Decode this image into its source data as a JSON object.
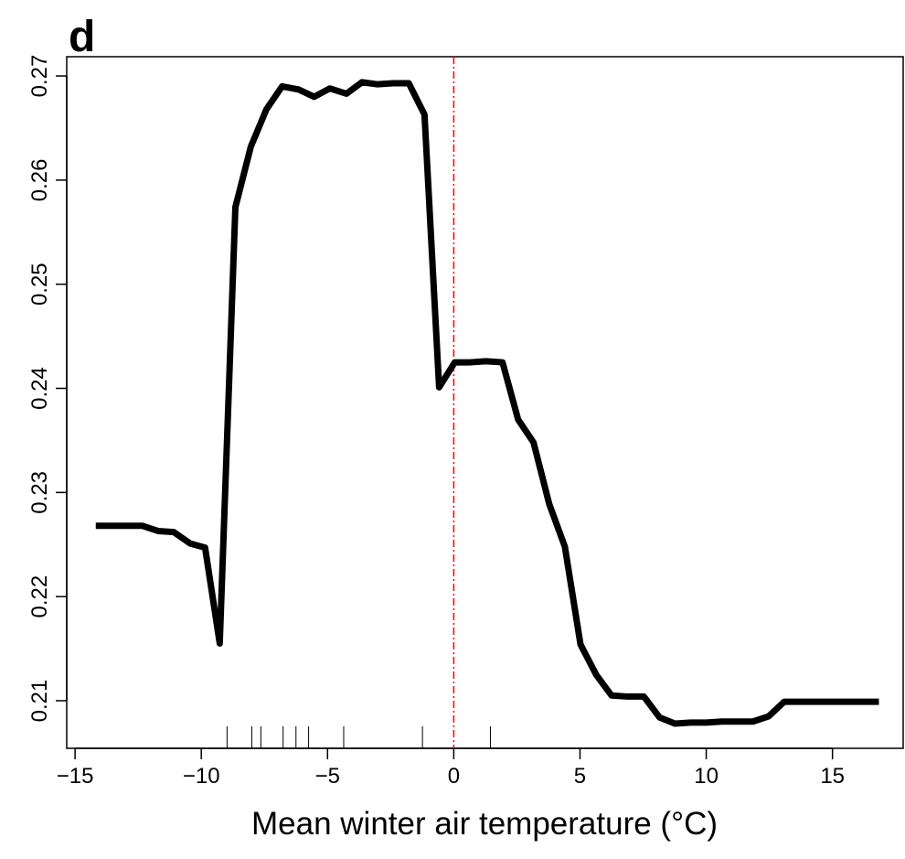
{
  "chart_data": {
    "type": "line",
    "panel_label": "d",
    "x_label": "Mean winter air temperature (°C)",
    "x": [
      -14.18,
      -12.33,
      -11.71,
      -11.09,
      -10.44,
      -9.85,
      -9.27,
      -8.65,
      -8.04,
      -7.42,
      -6.8,
      -6.15,
      -5.53,
      -4.91,
      -4.25,
      -3.64,
      -3.02,
      -2.4,
      -1.78,
      -1.16,
      -0.58,
      0.04,
      0.65,
      1.27,
      1.93,
      2.55,
      3.16,
      3.78,
      4.4,
      5.02,
      5.64,
      6.25,
      6.87,
      7.53,
      8.15,
      8.76,
      9.38,
      10.0,
      10.62,
      11.24,
      11.85,
      12.47,
      13.09,
      13.71,
      16.84
    ],
    "series": [
      {
        "color": "#000000",
        "values": [
          0.2268,
          0.2268,
          0.2263,
          0.2262,
          0.2251,
          0.2247,
          0.2155,
          0.2574,
          0.2632,
          0.2668,
          0.269,
          0.2687,
          0.268,
          0.2688,
          0.2683,
          0.2694,
          0.2692,
          0.2693,
          0.2693,
          0.2663,
          0.2401,
          0.2425,
          0.2425,
          0.2426,
          0.2425,
          0.237,
          0.2348,
          0.2289,
          0.2248,
          0.2154,
          0.2125,
          0.2105,
          0.2104,
          0.2104,
          0.2084,
          0.2078,
          0.2079,
          0.2079,
          0.208,
          0.208,
          0.208,
          0.2085,
          0.2099,
          0.2099,
          0.2099
        ]
      }
    ],
    "rug": [
      -8.98,
      -8.0,
      -7.64,
      -6.76,
      -6.25,
      -5.75,
      -4.36,
      -1.24,
      1.45
    ],
    "vline": 0,
    "vline_color": "#ff0000",
    "xlim": [
      -15.33,
      17.8
    ],
    "xticks": [
      {
        "value": -15,
        "label": "−15"
      },
      {
        "value": -10,
        "label": "−10"
      },
      {
        "value": -5,
        "label": "−5"
      },
      0,
      5,
      10,
      15
    ],
    "ylim": [
      0.20543,
      0.27185
    ],
    "yticks": [
      0.21,
      0.22,
      0.23,
      0.24,
      0.25,
      0.26,
      0.27
    ]
  }
}
